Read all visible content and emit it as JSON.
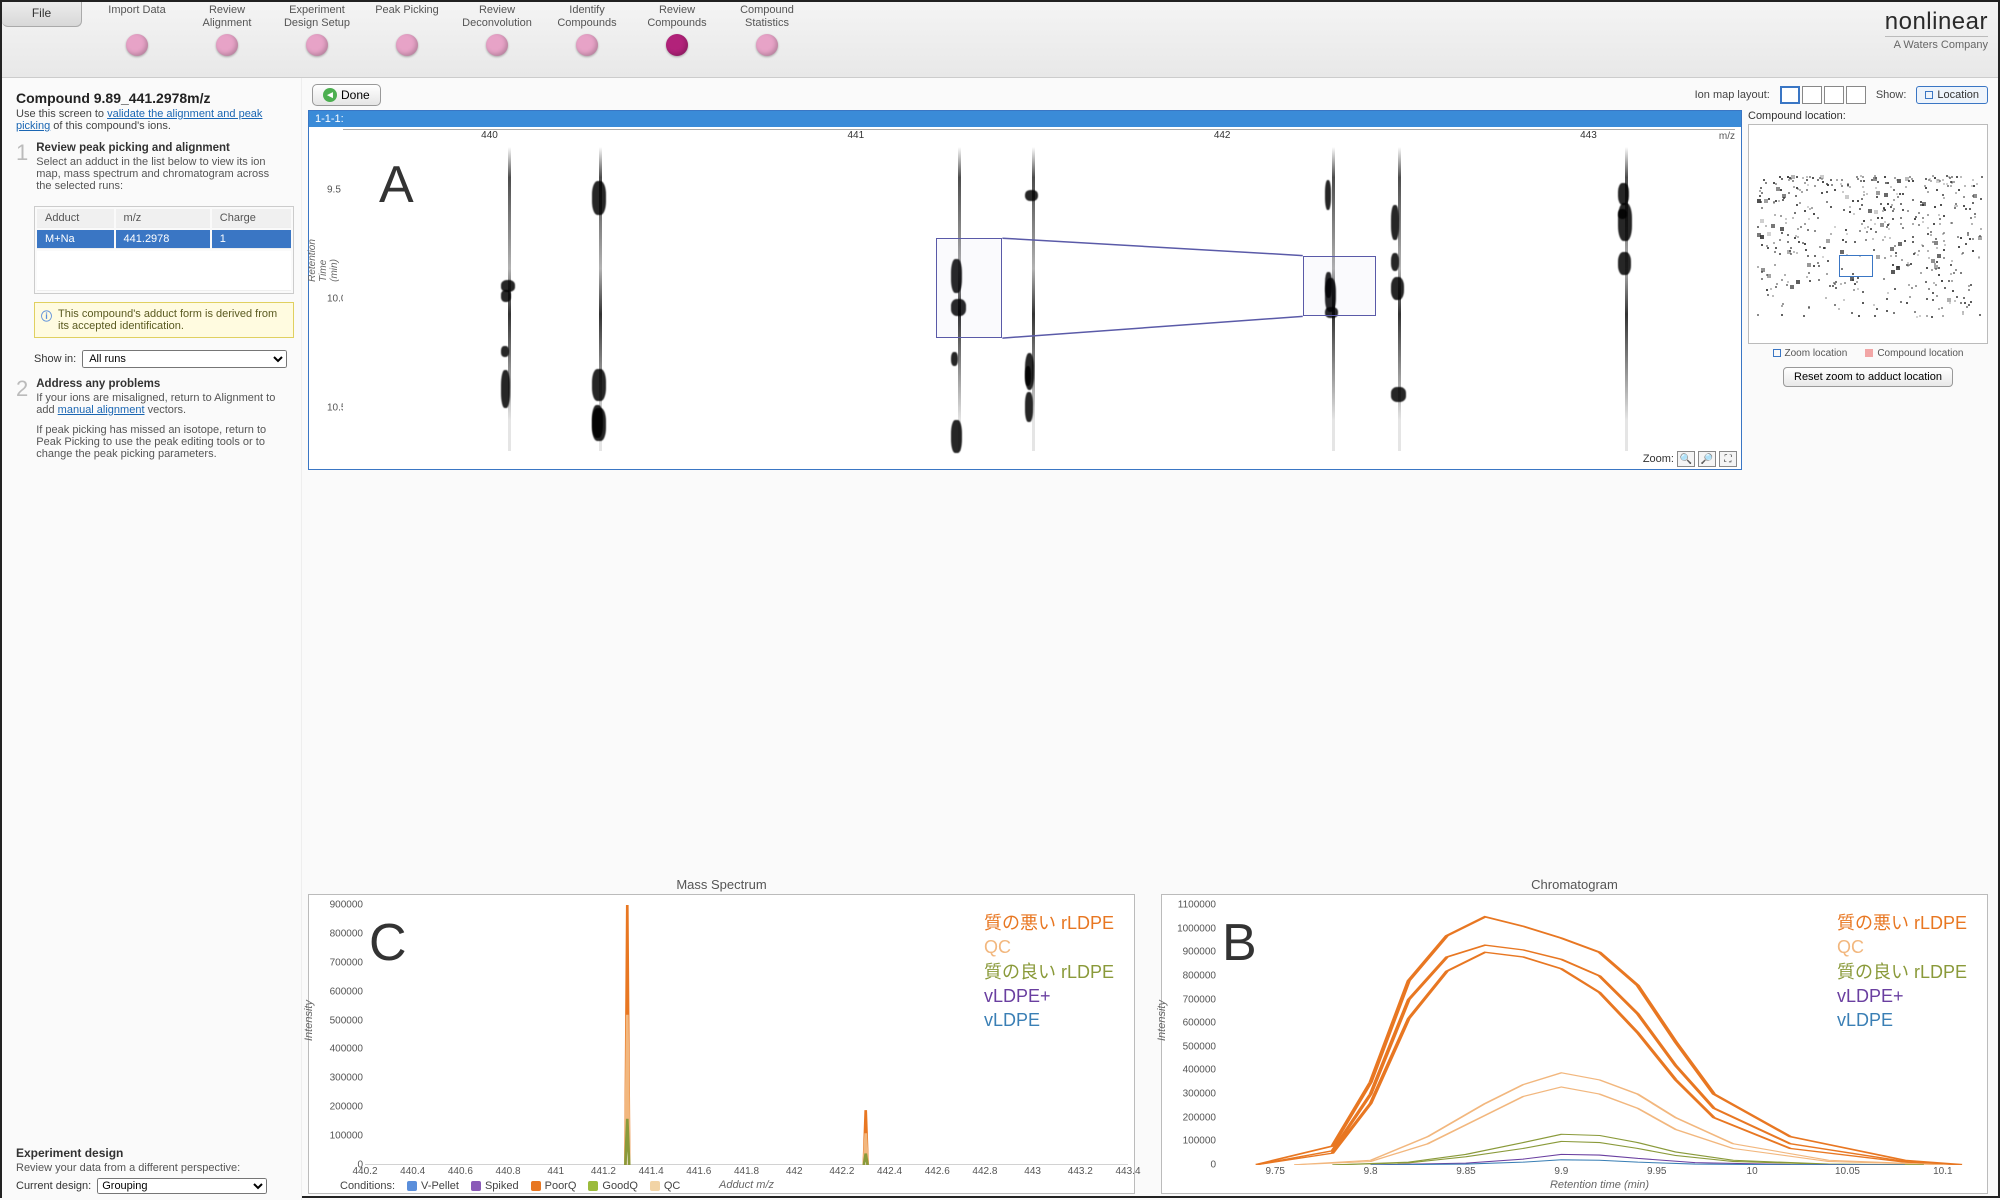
{
  "workflow": {
    "file_label": "File",
    "steps": [
      {
        "label": "Import Data",
        "color": "#e7a3c7",
        "active": false
      },
      {
        "label": "Review\nAlignment",
        "color": "#e7a3c7",
        "active": false
      },
      {
        "label": "Experiment\nDesign Setup",
        "color": "#e7a3c7",
        "active": false
      },
      {
        "label": "Peak Picking",
        "color": "#e7a3c7",
        "active": false
      },
      {
        "label": "Review\nDeconvolution",
        "color": "#e7a3c7",
        "active": false
      },
      {
        "label": "Identify\nCompounds",
        "color": "#e7a3c7",
        "active": false
      },
      {
        "label": "Review\nCompounds",
        "color": "#b2227a",
        "active": true
      },
      {
        "label": "Compound\nStatistics",
        "color": "#e7a3c7",
        "active": false
      }
    ]
  },
  "brand": {
    "name_a": "non",
    "name_b": "linear",
    "tagline": "A Waters Company"
  },
  "sidebar": {
    "title": "Compound 9.89_441.2978m/z",
    "help_pre": "Use this screen to ",
    "help_link": "validate the alignment and peak picking",
    "help_post": " of this compound's ions.",
    "step1_title": "Review peak picking and alignment",
    "step1_desc": "Select an adduct in the list below to view its ion map, mass spectrum and chromatogram across the selected runs:",
    "adduct_headers": [
      "Adduct",
      "m/z",
      "Charge"
    ],
    "adduct_row": [
      "M+Na",
      "441.2978",
      "1"
    ],
    "info_text": "This compound's adduct form is derived from its accepted identification.",
    "showin_label": "Show in:",
    "showin_value": "All runs",
    "step2_title": "Address any problems",
    "step2_desc1_pre": "If your ions are misaligned, return to Alignment to add ",
    "step2_desc1_link": "manual alignment",
    "step2_desc1_post": " vectors.",
    "step2_desc2": "If peak picking has missed an isotope, return to Peak Picking to use the peak editing tools or to change the peak picking parameters.",
    "expdesign_title": "Experiment design",
    "expdesign_sub": "Review your data from a different perspective:",
    "expdesign_label": "Current design:",
    "expdesign_value": "Grouping"
  },
  "toolbar": {
    "done": "Done",
    "layout_label": "Ion map layout:",
    "show_label": "Show:",
    "location": "Location"
  },
  "ionmap": {
    "header": "1-1-1:",
    "mz_unit": "m/z",
    "xticks": [
      440,
      441,
      442,
      443
    ],
    "xrange": [
      439.6,
      443.4
    ],
    "yticks": [
      9.5,
      10.0,
      10.5
    ],
    "yrange": [
      9.3,
      10.7
    ],
    "ylabel": "Retention Time (min)",
    "streaks_mz": [
      440.05,
      440.3,
      441.28,
      441.48,
      442.3,
      442.48,
      443.1
    ],
    "sel_a": {
      "mz0": 441.22,
      "mz1": 441.4,
      "rt0": 9.72,
      "rt1": 10.18
    },
    "sel_b": {
      "mz0": 442.22,
      "mz1": 442.42,
      "rt0": 9.8,
      "rt1": 10.08
    },
    "zoom_label": "Zoom:",
    "overlay": "A"
  },
  "comp_location": {
    "title": "Compound location:",
    "legend_zoom": "Zoom location",
    "legend_comp": "Compound location",
    "zoom_color": "#3a76c4",
    "comp_color": "#f2a6a6",
    "reset": "Reset zoom to adduct location"
  },
  "legend_series": [
    {
      "label": "質の悪い rLDPE",
      "color": "#e87722"
    },
    {
      "label": "QC",
      "color": "#f2b77e"
    },
    {
      "label": "質の良い rLDPE",
      "color": "#8a9a3a"
    },
    {
      "label": "vLDPE+",
      "color": "#6a3fa0"
    },
    {
      "label": "vLDPE",
      "color": "#3a7fb5"
    }
  ],
  "mass_spectrum": {
    "title": "Mass Spectrum",
    "overlay": "C",
    "ylabel": "Intensity",
    "xlabel": "Adduct m/z",
    "ylim": [
      0,
      900000
    ],
    "ytick_step": 100000,
    "xlim": [
      440.2,
      443.4
    ],
    "xtick_step": 0.2,
    "peaks": [
      {
        "mz": 441.3,
        "intensity": 900000,
        "color": "#e87722"
      },
      {
        "mz": 441.3,
        "intensity": 520000,
        "color": "#f2b77e"
      },
      {
        "mz": 441.3,
        "intensity": 160000,
        "color": "#8a9a3a"
      },
      {
        "mz": 442.3,
        "intensity": 190000,
        "color": "#e87722"
      },
      {
        "mz": 442.3,
        "intensity": 110000,
        "color": "#f2b77e"
      },
      {
        "mz": 442.3,
        "intensity": 40000,
        "color": "#8a9a3a"
      }
    ]
  },
  "chromatogram": {
    "title": "Chromatogram",
    "overlay": "B",
    "ylabel": "Intensity",
    "xlabel": "Retention time (min)",
    "ylim": [
      0,
      1100000
    ],
    "ytick_step": 100000,
    "xlim": [
      9.72,
      10.12
    ],
    "xticks": [
      9.75,
      9.8,
      9.85,
      9.9,
      9.95,
      10,
      10.05,
      10.1
    ],
    "series": [
      {
        "color": "#e87722",
        "width": 2.2,
        "points": [
          [
            9.74,
            2000
          ],
          [
            9.78,
            80000
          ],
          [
            9.8,
            350000
          ],
          [
            9.82,
            780000
          ],
          [
            9.84,
            970000
          ],
          [
            9.86,
            1050000
          ],
          [
            9.88,
            1010000
          ],
          [
            9.9,
            960000
          ],
          [
            9.92,
            900000
          ],
          [
            9.94,
            760000
          ],
          [
            9.96,
            520000
          ],
          [
            9.98,
            300000
          ],
          [
            10.02,
            120000
          ],
          [
            10.08,
            20000
          ],
          [
            10.11,
            2000
          ]
        ]
      },
      {
        "color": "#e87722",
        "width": 2.0,
        "points": [
          [
            9.74,
            1000
          ],
          [
            9.78,
            60000
          ],
          [
            9.8,
            300000
          ],
          [
            9.82,
            700000
          ],
          [
            9.84,
            880000
          ],
          [
            9.86,
            930000
          ],
          [
            9.88,
            910000
          ],
          [
            9.9,
            870000
          ],
          [
            9.92,
            800000
          ],
          [
            9.94,
            640000
          ],
          [
            9.96,
            420000
          ],
          [
            9.98,
            240000
          ],
          [
            10.02,
            90000
          ],
          [
            10.08,
            15000
          ],
          [
            10.11,
            1000
          ]
        ]
      },
      {
        "color": "#e87722",
        "width": 2.0,
        "points": [
          [
            9.74,
            1000
          ],
          [
            9.78,
            50000
          ],
          [
            9.8,
            260000
          ],
          [
            9.82,
            620000
          ],
          [
            9.84,
            820000
          ],
          [
            9.86,
            900000
          ],
          [
            9.88,
            880000
          ],
          [
            9.9,
            830000
          ],
          [
            9.92,
            730000
          ],
          [
            9.94,
            560000
          ],
          [
            9.96,
            360000
          ],
          [
            9.98,
            200000
          ],
          [
            10.02,
            70000
          ],
          [
            10.08,
            12000
          ],
          [
            10.11,
            1000
          ]
        ]
      },
      {
        "color": "#f2b77e",
        "width": 1.6,
        "points": [
          [
            9.76,
            1000
          ],
          [
            9.8,
            20000
          ],
          [
            9.83,
            120000
          ],
          [
            9.86,
            260000
          ],
          [
            9.88,
            340000
          ],
          [
            9.9,
            390000
          ],
          [
            9.92,
            360000
          ],
          [
            9.94,
            300000
          ],
          [
            9.96,
            200000
          ],
          [
            9.99,
            90000
          ],
          [
            10.04,
            20000
          ],
          [
            10.1,
            1000
          ]
        ]
      },
      {
        "color": "#f2b77e",
        "width": 1.6,
        "points": [
          [
            9.76,
            1000
          ],
          [
            9.8,
            15000
          ],
          [
            9.83,
            90000
          ],
          [
            9.86,
            210000
          ],
          [
            9.88,
            290000
          ],
          [
            9.9,
            330000
          ],
          [
            9.92,
            300000
          ],
          [
            9.94,
            240000
          ],
          [
            9.96,
            150000
          ],
          [
            9.99,
            70000
          ],
          [
            10.04,
            15000
          ],
          [
            10.1,
            1000
          ]
        ]
      },
      {
        "color": "#8a9a3a",
        "width": 1.6,
        "points": [
          [
            9.78,
            500
          ],
          [
            9.82,
            12000
          ],
          [
            9.85,
            45000
          ],
          [
            9.88,
            95000
          ],
          [
            9.9,
            130000
          ],
          [
            9.92,
            125000
          ],
          [
            9.94,
            95000
          ],
          [
            9.96,
            55000
          ],
          [
            9.99,
            20000
          ],
          [
            10.04,
            4000
          ],
          [
            10.09,
            500
          ]
        ]
      },
      {
        "color": "#8a9a3a",
        "width": 1.6,
        "points": [
          [
            9.78,
            500
          ],
          [
            9.82,
            9000
          ],
          [
            9.85,
            35000
          ],
          [
            9.88,
            70000
          ],
          [
            9.9,
            100000
          ],
          [
            9.92,
            95000
          ],
          [
            9.94,
            70000
          ],
          [
            9.96,
            40000
          ],
          [
            9.99,
            15000
          ],
          [
            10.04,
            3000
          ],
          [
            10.09,
            500
          ]
        ]
      },
      {
        "color": "#6a3fa0",
        "width": 1.6,
        "points": [
          [
            9.8,
            200
          ],
          [
            9.85,
            8000
          ],
          [
            9.88,
            25000
          ],
          [
            9.9,
            45000
          ],
          [
            9.92,
            42000
          ],
          [
            9.94,
            28000
          ],
          [
            9.97,
            10000
          ],
          [
            10.02,
            2000
          ],
          [
            10.08,
            200
          ]
        ]
      },
      {
        "color": "#3a7fb5",
        "width": 1.6,
        "points": [
          [
            9.8,
            100
          ],
          [
            9.85,
            4000
          ],
          [
            9.88,
            12000
          ],
          [
            9.9,
            22000
          ],
          [
            9.92,
            20000
          ],
          [
            9.94,
            12000
          ],
          [
            9.97,
            4000
          ],
          [
            10.02,
            800
          ],
          [
            10.08,
            100
          ]
        ]
      }
    ]
  },
  "conditions": {
    "label": "Conditions:",
    "items": [
      {
        "label": "V-Pellet",
        "color": "#5a8edb"
      },
      {
        "label": "Spiked",
        "color": "#8a5ab8"
      },
      {
        "label": "PoorQ",
        "color": "#e87722"
      },
      {
        "label": "GoodQ",
        "color": "#9bbb3c"
      },
      {
        "label": "QC",
        "color": "#f2d4a6"
      }
    ]
  }
}
